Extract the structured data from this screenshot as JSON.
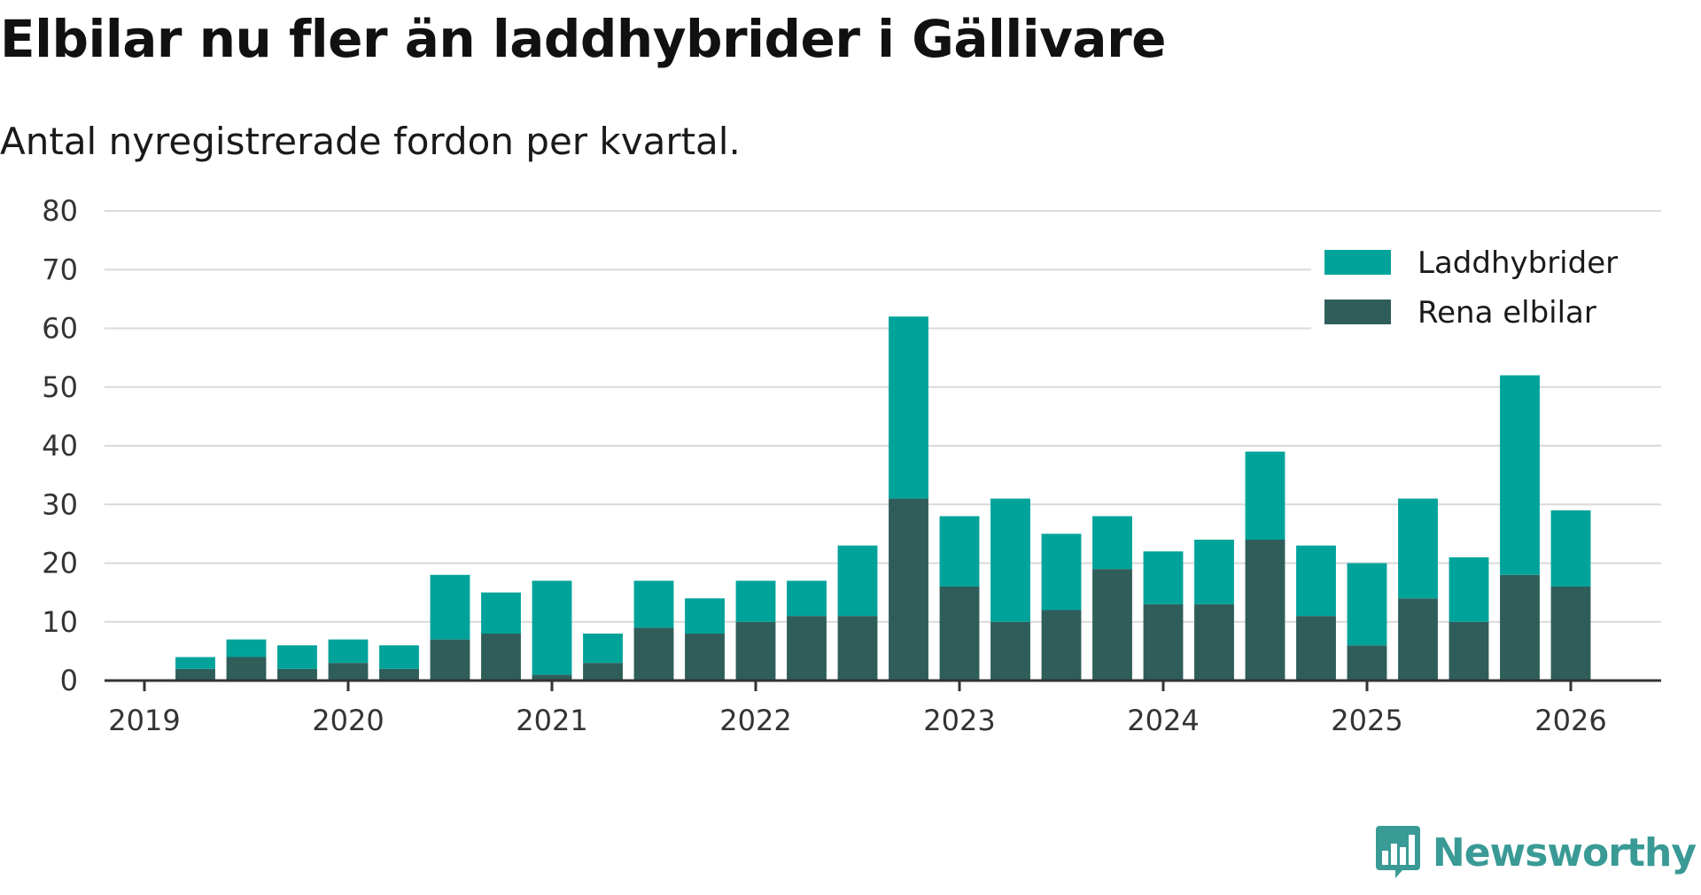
{
  "brand": {
    "name": "Newsworthy",
    "color": "#3a9a95",
    "logo_icon": "bar-chart-speech-bubble-icon"
  },
  "chart_data": {
    "type": "bar",
    "stacked": true,
    "title": "Elbilar nu fler än laddhybrider i Gällivare",
    "subtitle": "Antal nyregistrerade fordon per kvartal.",
    "xlabel": "",
    "ylabel": "",
    "ylim": [
      0,
      80
    ],
    "yticks": [
      0,
      10,
      20,
      30,
      40,
      50,
      60,
      70,
      80
    ],
    "xticks": [
      "2019",
      "2020",
      "2021",
      "2022",
      "2023",
      "2024",
      "2025",
      "2026"
    ],
    "x_start": 2019,
    "x_end": 2026,
    "legend_position": "top-right",
    "grid": true,
    "categories": [
      "2019-Q2",
      "2019-Q3",
      "2019-Q4",
      "2020-Q1",
      "2020-Q2",
      "2020-Q3",
      "2020-Q4",
      "2021-Q1",
      "2021-Q2",
      "2021-Q3",
      "2021-Q4",
      "2022-Q1",
      "2022-Q2",
      "2022-Q3",
      "2022-Q4",
      "2023-Q1",
      "2023-Q2",
      "2023-Q3",
      "2023-Q4",
      "2024-Q1",
      "2024-Q2",
      "2024-Q3",
      "2024-Q4",
      "2025-Q1",
      "2025-Q2",
      "2025-Q3",
      "2025-Q4",
      "2026-Q1"
    ],
    "series": [
      {
        "name": "Rena elbilar",
        "color": "#2f5e5a",
        "values": [
          2,
          4,
          2,
          3,
          2,
          7,
          8,
          1,
          3,
          9,
          8,
          10,
          11,
          11,
          31,
          16,
          10,
          12,
          19,
          13,
          13,
          24,
          11,
          6,
          14,
          10,
          18,
          16
        ]
      },
      {
        "name": "Laddhybrider",
        "color": "#00a39a",
        "values": [
          2,
          3,
          4,
          4,
          4,
          11,
          7,
          16,
          5,
          8,
          6,
          7,
          6,
          12,
          31,
          12,
          21,
          13,
          9,
          9,
          11,
          15,
          12,
          14,
          17,
          11,
          34,
          13
        ]
      }
    ],
    "legend_order": [
      "Laddhybrider",
      "Rena elbilar"
    ]
  }
}
